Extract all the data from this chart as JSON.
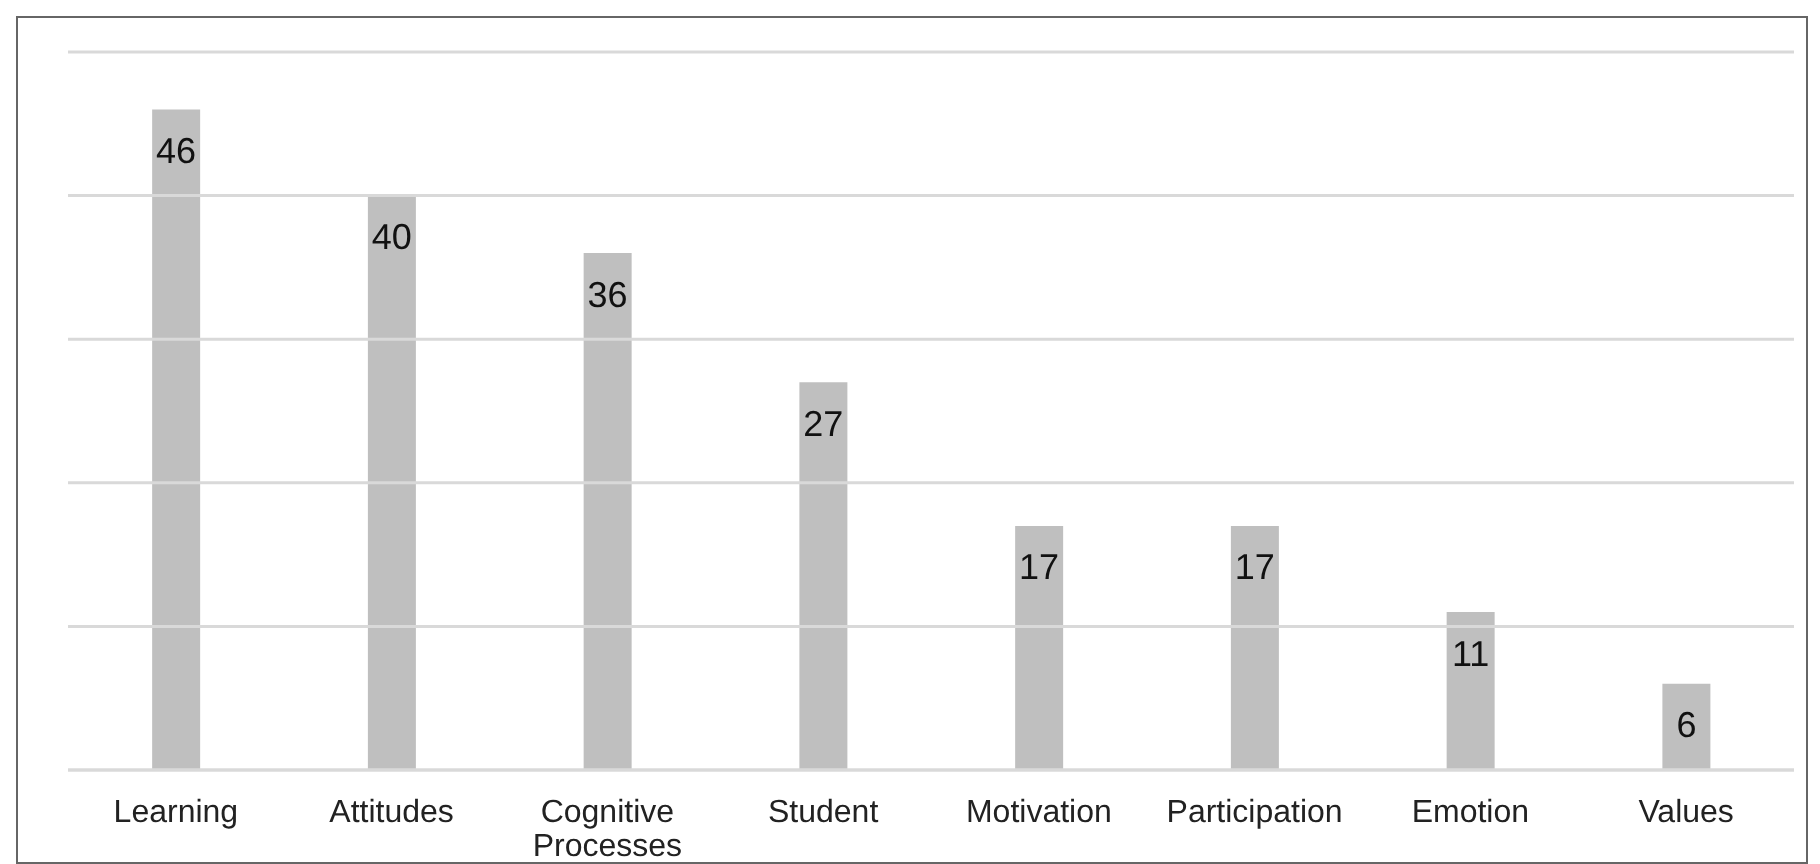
{
  "chart_data": {
    "type": "bar",
    "categories": [
      "Learning",
      "Attitudes",
      "Cognitive Processes",
      "Student",
      "Motivation",
      "Participation",
      "Emotion",
      "Values"
    ],
    "values": [
      46,
      40,
      36,
      27,
      17,
      17,
      11,
      6
    ],
    "color": "#bfbfbf",
    "ylim": [
      0,
      50
    ],
    "yticks": [
      {
        "value": 0,
        "label": null
      },
      {
        "value": 10,
        "label": null
      },
      {
        "value": 20,
        "label": null
      },
      {
        "value": 30,
        "label": null
      },
      {
        "value": 40,
        "label": null
      },
      {
        "value": 50,
        "label": null
      }
    ],
    "tick_labels": "x",
    "grid": "y",
    "data_labels": true
  }
}
